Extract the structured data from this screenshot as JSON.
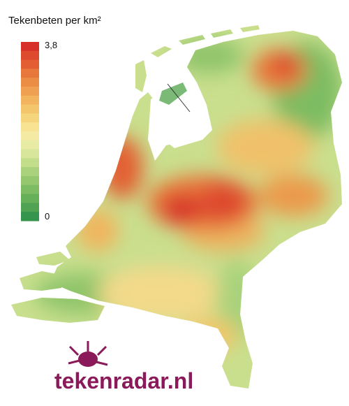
{
  "title": "Tekenbeten per km²",
  "legend": {
    "max": {
      "value": 3.8,
      "label": "3,8"
    },
    "min": 0,
    "colors": [
      "#d7302a",
      "#de4a2e",
      "#e35f33",
      "#e8773b",
      "#ec8d45",
      "#efa050",
      "#f2b45d",
      "#f4c66b",
      "#f6d67d",
      "#f7e392",
      "#f4eaa3",
      "#e8eba3",
      "#d7e69a",
      "#c2de8b",
      "#aad27c",
      "#94c76e",
      "#7dbc62",
      "#66b05a",
      "#4fa353",
      "#36954c"
    ]
  },
  "logo": "tekenradar.nl"
}
